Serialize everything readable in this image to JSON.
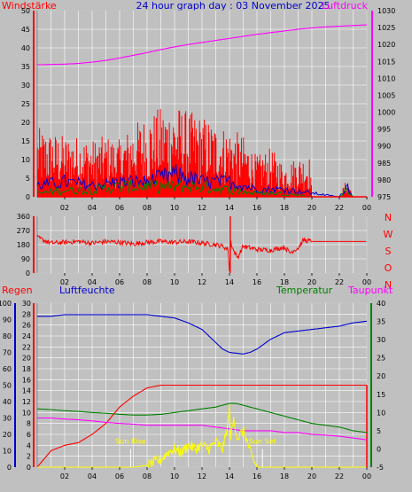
{
  "header": {
    "left_label": "Windstärke",
    "title": "24 hour graph day : 03 November 2025",
    "right_label": "Luftdruck"
  },
  "direction_legend": [
    "N",
    "W",
    "S",
    "O",
    "N"
  ],
  "lower_legend": {
    "regen": "Regen",
    "luftfeuchte": "Luftfeuchte",
    "temperatur": "Temperatur",
    "taupunkt": "Taupunkt"
  },
  "annotations": {
    "sun_rise": "Sun Rise",
    "sun_set": "Sun Set"
  },
  "colors": {
    "background": "#c0c0c0",
    "grid": "#ffffff",
    "wind_gust": "#ff0000",
    "wind_mean": "#0000cc",
    "wind_low": "#008000",
    "pressure": "#ff00ff",
    "humidity": "#0000cc",
    "rain": "#ff0000",
    "temperature": "#008000",
    "dewpoint": "#ff00ff",
    "solar": "#ffff00"
  },
  "chart_data": [
    {
      "type": "line",
      "title": "24 hour graph day : 03 November 2025",
      "x_tick_labels": [
        "02",
        "04",
        "06",
        "08",
        "10",
        "12",
        "14",
        "16",
        "18",
        "20",
        "22",
        "00"
      ],
      "left_axis": {
        "label": "Windstärke",
        "range": [
          0,
          50
        ],
        "ticks": [
          0,
          5,
          10,
          15,
          20,
          25,
          30,
          35,
          40,
          45,
          50
        ]
      },
      "right_axis": {
        "label": "Luftdruck",
        "range": [
          975,
          1030
        ],
        "ticks": [
          975,
          980,
          985,
          990,
          995,
          1000,
          1005,
          1010,
          1015,
          1020,
          1025,
          1030
        ]
      },
      "grid": true,
      "series": [
        {
          "name": "Windstärke",
          "axis": "left",
          "hours": [
            0,
            1,
            2,
            3,
            4,
            5,
            6,
            7,
            8,
            9,
            10,
            11,
            12,
            13,
            14,
            15,
            16,
            17,
            18,
            19,
            19.9,
            20,
            21,
            22,
            22.6,
            23,
            24
          ],
          "values": [
            17,
            16,
            15,
            15,
            14,
            15,
            14,
            18,
            20,
            22,
            23,
            21,
            20,
            18,
            17,
            15,
            10,
            12,
            8,
            10,
            10,
            0,
            0,
            0,
            5,
            0,
            0
          ]
        },
        {
          "axis": "left",
          "hours": [
            0,
            2,
            4,
            6,
            8,
            10,
            12,
            14,
            16,
            18,
            20,
            22,
            22.6,
            23,
            24
          ],
          "values": [
            3,
            4,
            3,
            4,
            4,
            6,
            4,
            4,
            2,
            2,
            1,
            0,
            3,
            0,
            0
          ]
        },
        {
          "axis": "left",
          "hours": [
            0,
            2,
            4,
            6,
            8,
            10,
            12,
            14,
            16,
            18,
            20,
            22,
            22.6,
            23,
            24
          ],
          "values": [
            1,
            2,
            2,
            3,
            3,
            3,
            3,
            2,
            1,
            1,
            0,
            0,
            2,
            0,
            0
          ]
        },
        {
          "name": "Luftdruck",
          "axis": "right",
          "hours": [
            0,
            1,
            2,
            3,
            4,
            5,
            6,
            7,
            8,
            9,
            10,
            11,
            12,
            13,
            14,
            15,
            16,
            17,
            18,
            19,
            20,
            21,
            22,
            23,
            24
          ],
          "values": [
            1014.0,
            1014.1,
            1014.2,
            1014.4,
            1014.8,
            1015.3,
            1016.0,
            1016.8,
            1017.6,
            1018.5,
            1019.3,
            1020.0,
            1020.6,
            1021.2,
            1021.8,
            1022.4,
            1023.0,
            1023.5,
            1024.0,
            1024.5,
            1024.9,
            1025.2,
            1025.4,
            1025.6,
            1025.8
          ]
        }
      ]
    },
    {
      "type": "line",
      "x_tick_labels": [
        "02",
        "04",
        "06",
        "08",
        "10",
        "12",
        "14",
        "16",
        "18",
        "20",
        "22",
        "00"
      ],
      "left_axis": {
        "range": [
          0,
          360
        ],
        "ticks": [
          0,
          90,
          180,
          270,
          360
        ]
      },
      "right_axis_labels": [
        "N",
        "W",
        "S",
        "O",
        "N"
      ],
      "grid": true,
      "series": [
        {
          "hours": [
            0,
            1,
            2,
            3,
            4,
            5,
            6,
            7,
            8,
            9,
            10,
            11,
            12,
            13,
            13.5,
            13.9,
            14.0,
            14.1,
            14.3,
            14.6,
            15,
            16,
            17,
            18,
            18.4,
            19,
            19.4,
            20,
            21,
            22,
            23,
            24
          ],
          "values": [
            225,
            190,
            195,
            200,
            190,
            200,
            195,
            185,
            195,
            200,
            195,
            200,
            190,
            180,
            170,
            150,
            10,
            200,
            140,
            100,
            170,
            150,
            145,
            165,
            130,
            160,
            210,
            200,
            200,
            200,
            200,
            200
          ]
        }
      ]
    },
    {
      "type": "line",
      "legend": [
        "Regen",
        "Luftfeuchte",
        "Temperatur",
        "Taupunkt"
      ],
      "x_tick_labels": [
        "02",
        "04",
        "06",
        "08",
        "10",
        "12",
        "14",
        "16",
        "18",
        "20",
        "22",
        "00"
      ],
      "humidity_axis": {
        "range": [
          0,
          100
        ],
        "ticks": [
          0,
          10,
          20,
          30,
          40,
          50,
          60,
          70,
          80,
          90,
          100
        ]
      },
      "rain_axis": {
        "range": [
          0,
          30
        ],
        "ticks": [
          0,
          2,
          4,
          6,
          8,
          10,
          12,
          14,
          16,
          18,
          20,
          22,
          24,
          26,
          28,
          30
        ]
      },
      "temp_axis": {
        "range": [
          -5,
          40
        ],
        "ticks": [
          -5,
          0,
          5,
          10,
          15,
          20,
          25,
          30,
          35,
          40
        ]
      },
      "grid": true,
      "annotations": [
        {
          "text": "Sun Rise",
          "hour": 6.8
        },
        {
          "text": "Sun Set",
          "hour": 16.4
        }
      ],
      "series": [
        {
          "name": "Luftfeuchte",
          "axis": "humidity",
          "hours": [
            0,
            1,
            2,
            3,
            4,
            5,
            6,
            7,
            8,
            9,
            10,
            11,
            12,
            12.5,
            13,
            13.5,
            14,
            15,
            15.5,
            16,
            17,
            18,
            19,
            20,
            21,
            22,
            23,
            24
          ],
          "values": [
            92,
            92,
            93,
            93,
            93,
            93,
            93,
            93,
            93,
            92,
            91,
            88,
            84,
            80,
            76,
            72,
            70,
            69,
            70,
            72,
            78,
            82,
            83,
            84,
            85,
            86,
            88,
            89
          ]
        },
        {
          "name": "Regen",
          "axis": "rain",
          "hours": [
            0,
            0.5,
            1,
            2,
            3,
            4,
            5,
            6,
            7,
            8,
            9,
            10,
            11,
            12,
            13,
            14,
            15,
            16,
            17,
            18,
            19,
            20,
            21,
            22,
            23,
            24
          ],
          "values": [
            0,
            1.5,
            3,
            4,
            4.5,
            6,
            8,
            11,
            13,
            14.5,
            15,
            15,
            15,
            15,
            15,
            15,
            15,
            15,
            15,
            15,
            15,
            15,
            15,
            15,
            15,
            15
          ]
        },
        {
          "name": "Temperatur",
          "axis": "temp",
          "hours": [
            0,
            1,
            2,
            3,
            4,
            5,
            6,
            7,
            8,
            9,
            10,
            11,
            12,
            13,
            14,
            14.5,
            15,
            16,
            17,
            18,
            19,
            20,
            21,
            22,
            23,
            24
          ],
          "values": [
            11,
            10.8,
            10.5,
            10.3,
            10,
            9.8,
            9.5,
            9.3,
            9.3,
            9.5,
            10,
            10.5,
            11,
            11.5,
            12.5,
            12.5,
            12,
            11,
            10,
            9,
            8,
            7,
            6.5,
            6,
            5,
            4.5
          ]
        },
        {
          "name": "Taupunkt",
          "axis": "temp",
          "hours": [
            0,
            1,
            2,
            3,
            4,
            5,
            6,
            7,
            8,
            9,
            10,
            11,
            12,
            13,
            14,
            15,
            16,
            17,
            18,
            19,
            20,
            21,
            22,
            23,
            24
          ],
          "values": [
            8.5,
            8.5,
            8.2,
            8,
            7.7,
            7.3,
            7,
            6.8,
            6.5,
            6.5,
            6.5,
            6.5,
            6.5,
            6,
            5.5,
            5,
            5,
            5,
            4.5,
            4.5,
            4,
            3.8,
            3.5,
            3,
            2.5
          ]
        },
        {
          "axis": "temp",
          "hours": [
            0,
            6,
            7,
            8,
            9,
            9.5,
            10,
            10.5,
            11,
            11.5,
            12,
            12.5,
            13,
            13.5,
            13.8,
            14,
            14.1,
            14.3,
            14.6,
            15,
            15.3,
            15.6,
            16,
            16.5,
            24
          ],
          "values": [
            -5,
            -5,
            -5,
            -4.5,
            -3,
            -1,
            0,
            -1,
            1,
            0,
            1,
            0,
            2,
            0,
            5,
            11,
            3,
            8,
            3,
            5,
            2,
            -2,
            -5,
            -5,
            -5
          ]
        }
      ]
    }
  ]
}
